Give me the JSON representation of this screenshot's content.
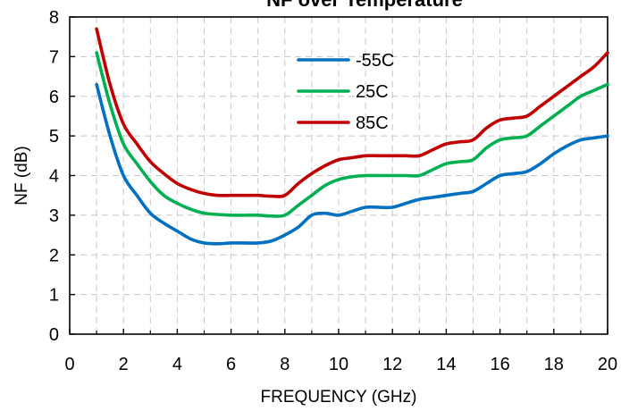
{
  "chart_data": {
    "type": "line",
    "title": "NF over Temperature",
    "xlabel": "FREQUENCY (GHz)",
    "ylabel": "NF (dB)",
    "xlim": [
      0,
      20
    ],
    "ylim": [
      0,
      8
    ],
    "xticks": [
      "0",
      "2",
      "4",
      "6",
      "8",
      "10",
      "12",
      "14",
      "16",
      "18",
      "20"
    ],
    "yticks": [
      "0",
      "1",
      "2",
      "3",
      "4",
      "5",
      "6",
      "7",
      "8"
    ],
    "grid": true,
    "legend_position": "upper-center",
    "series": [
      {
        "name": "-55C",
        "color": "#0070c0",
        "x": [
          1,
          1.5,
          2,
          2.5,
          3,
          3.5,
          4,
          4.5,
          5,
          5.5,
          6,
          6.5,
          7,
          7.5,
          8,
          8.5,
          9,
          9.5,
          10,
          10.5,
          11,
          11.5,
          12,
          12.5,
          13,
          13.5,
          14,
          14.5,
          15,
          15.5,
          16,
          16.5,
          17,
          17.5,
          18,
          18.5,
          19,
          19.5,
          20
        ],
        "y": [
          6.3,
          5.0,
          4.0,
          3.5,
          3.05,
          2.8,
          2.6,
          2.4,
          2.3,
          2.28,
          2.3,
          2.3,
          2.3,
          2.35,
          2.5,
          2.7,
          3.0,
          3.05,
          3.0,
          3.1,
          3.2,
          3.2,
          3.2,
          3.3,
          3.4,
          3.45,
          3.5,
          3.55,
          3.6,
          3.8,
          4.0,
          4.05,
          4.1,
          4.3,
          4.55,
          4.75,
          4.9,
          4.95,
          5.0
        ]
      },
      {
        "name": "25C",
        "color": "#00b050",
        "x": [
          1,
          1.5,
          2,
          2.5,
          3,
          3.5,
          4,
          4.5,
          5,
          5.5,
          6,
          6.5,
          7,
          7.5,
          8,
          8.5,
          9,
          9.5,
          10,
          10.5,
          11,
          11.5,
          12,
          12.5,
          13,
          13.5,
          14,
          14.5,
          15,
          15.5,
          16,
          16.5,
          17,
          17.5,
          18,
          18.5,
          19,
          19.5,
          20
        ],
        "y": [
          7.1,
          5.8,
          4.8,
          4.3,
          3.85,
          3.5,
          3.3,
          3.15,
          3.05,
          3.02,
          3.0,
          3.0,
          3.0,
          2.98,
          3.0,
          3.25,
          3.5,
          3.75,
          3.9,
          3.97,
          4.0,
          4.0,
          4.0,
          4.0,
          4.0,
          4.15,
          4.3,
          4.35,
          4.4,
          4.7,
          4.9,
          4.95,
          5.0,
          5.25,
          5.5,
          5.75,
          6.0,
          6.15,
          6.3
        ]
      },
      {
        "name": "85C",
        "color": "#c00000",
        "x": [
          1,
          1.5,
          2,
          2.5,
          3,
          3.5,
          4,
          4.5,
          5,
          5.5,
          6,
          6.5,
          7,
          7.5,
          8,
          8.5,
          9,
          9.5,
          10,
          10.5,
          11,
          11.5,
          12,
          12.5,
          13,
          13.5,
          14,
          14.5,
          15,
          15.5,
          16,
          16.5,
          17,
          17.5,
          18,
          18.5,
          19,
          19.5,
          20
        ],
        "y": [
          7.7,
          6.3,
          5.3,
          4.8,
          4.35,
          4.05,
          3.8,
          3.65,
          3.55,
          3.5,
          3.5,
          3.5,
          3.5,
          3.48,
          3.5,
          3.8,
          4.05,
          4.25,
          4.4,
          4.45,
          4.5,
          4.5,
          4.5,
          4.5,
          4.5,
          4.65,
          4.8,
          4.85,
          4.9,
          5.2,
          5.4,
          5.45,
          5.5,
          5.75,
          6.0,
          6.25,
          6.5,
          6.75,
          7.1
        ]
      }
    ]
  }
}
